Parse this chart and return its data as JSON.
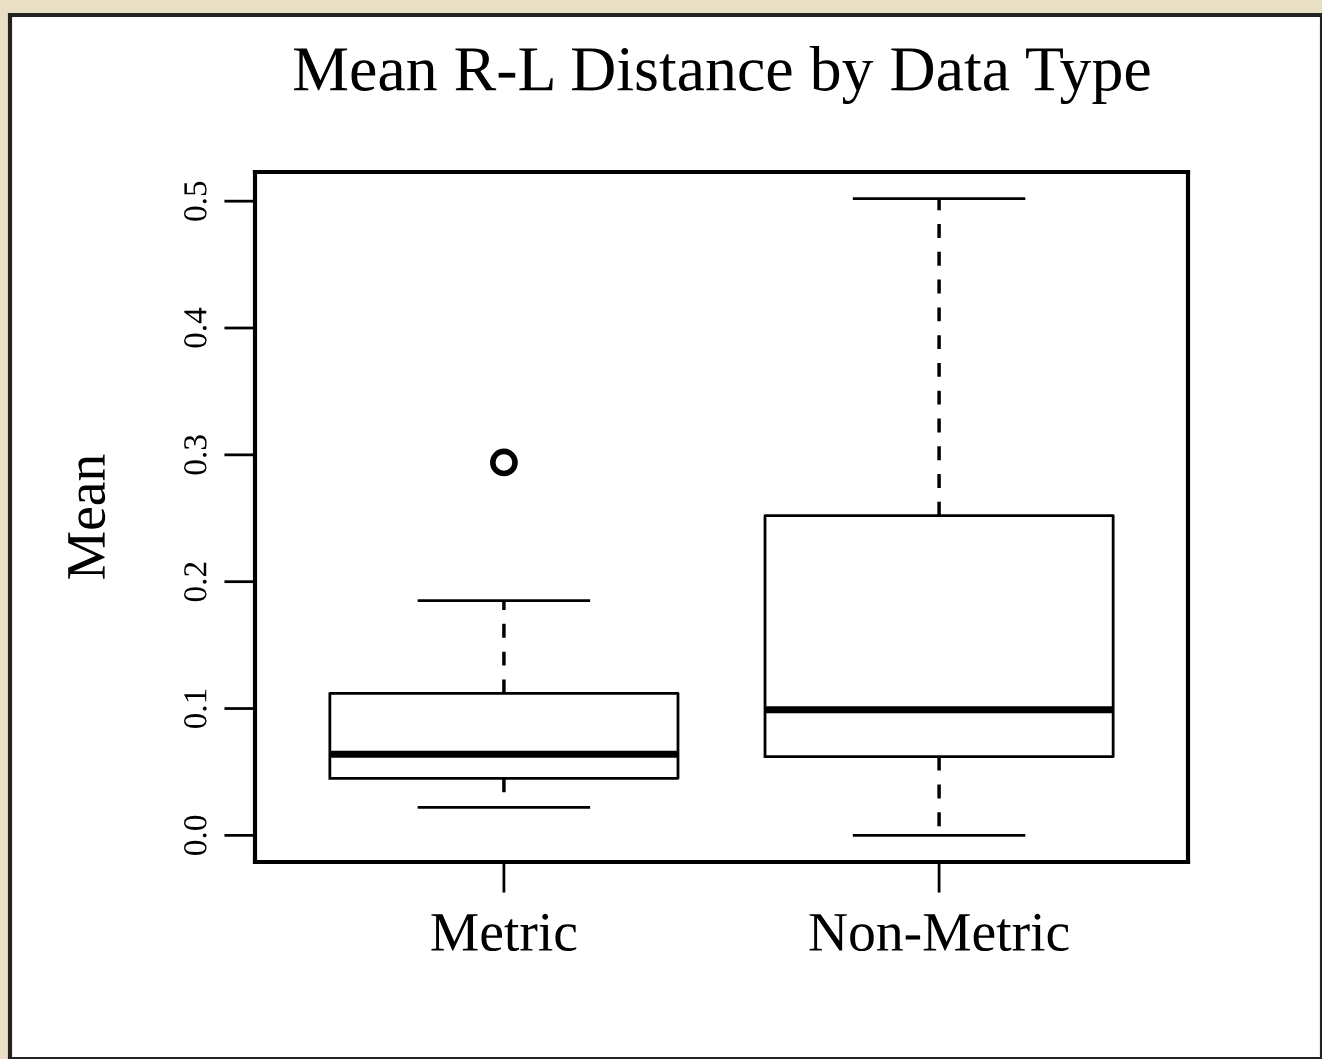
{
  "chart_data": {
    "type": "box",
    "title": "Mean R-L Distance by Data Type",
    "ylabel": "Mean",
    "categories": [
      "Metric",
      "Non-Metric"
    ],
    "boxes": [
      {
        "low": 0.022,
        "q1": 0.045,
        "median": 0.064,
        "q3": 0.112,
        "high": 0.185,
        "outliers": [
          0.294
        ]
      },
      {
        "low": 0.0,
        "q1": 0.062,
        "median": 0.099,
        "q3": 0.252,
        "high": 0.502
      }
    ],
    "ylim": [
      -0.021,
      0.523
    ],
    "yticks": [
      {
        "value": 0,
        "label": "0.0"
      },
      0.1,
      0.2,
      0.3,
      0.4,
      0.5
    ],
    "line_style": "dashed",
    "marker": "circle"
  }
}
